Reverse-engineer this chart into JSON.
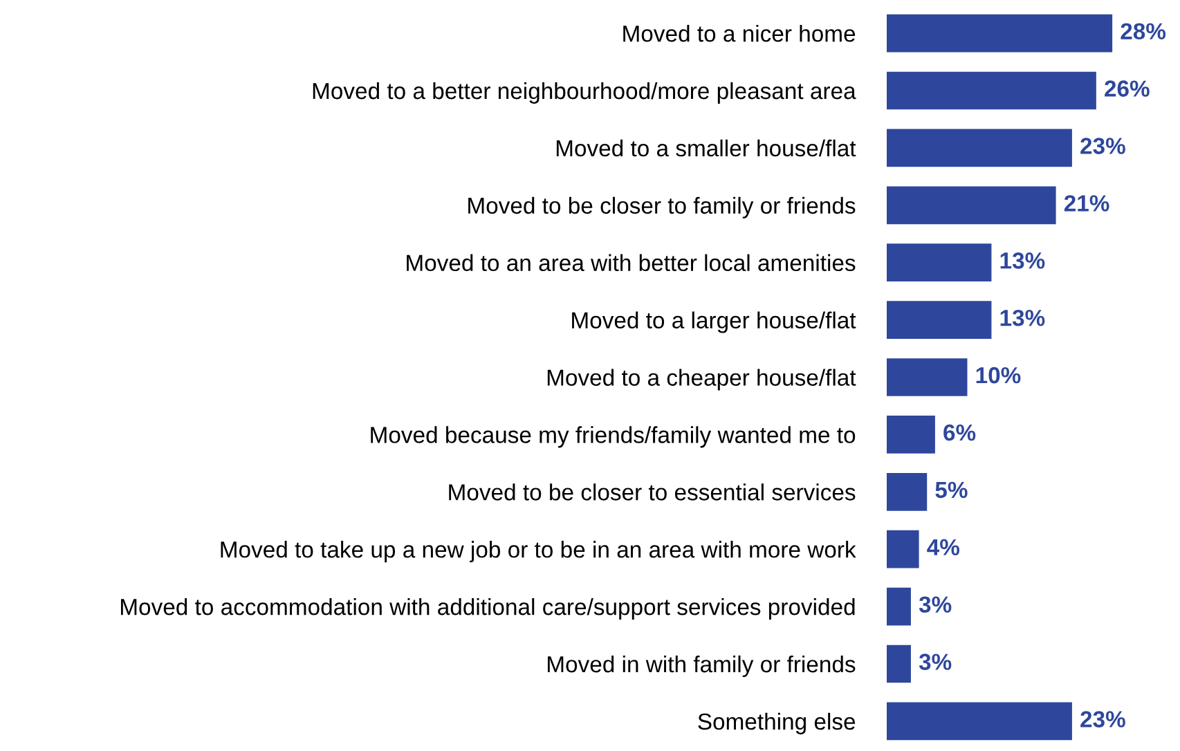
{
  "chart_data": {
    "type": "bar",
    "orientation": "horizontal",
    "categories": [
      "Moved to a nicer home",
      "Moved to a better neighbourhood/more pleasant area",
      "Moved to a smaller house/flat",
      "Moved to be closer to family or friends",
      "Moved to an area with better local amenities",
      "Moved to a larger house/flat",
      "Moved to a cheaper house/flat",
      "Moved because my friends/family wanted me to",
      "Moved to be closer to essential services",
      "Moved to take up a new job or to be in an area with more work",
      "Moved to accommodation with additional care/support services provided",
      "Moved in with family or friends",
      "Something else"
    ],
    "values": [
      28,
      26,
      23,
      21,
      13,
      13,
      10,
      6,
      5,
      4,
      3,
      3,
      23
    ],
    "value_labels": [
      "28%",
      "26%",
      "23%",
      "21%",
      "13%",
      "13%",
      "10%",
      "6%",
      "5%",
      "4%",
      "3%",
      "3%",
      "23%"
    ],
    "color": "#2e479c",
    "grid": false,
    "legend": false
  }
}
